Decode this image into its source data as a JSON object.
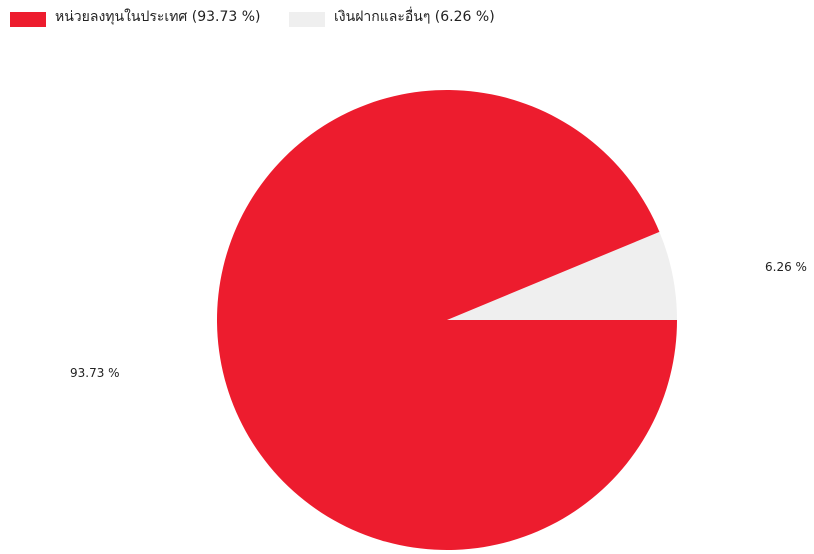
{
  "chart_data": {
    "type": "pie",
    "legend_position": "top-left",
    "series": [
      {
        "name": "หน่วยลงทุนในประเทศ (93.73 %)",
        "value": 93.73,
        "data_label": "93.73 %",
        "color": "#ed1c2e"
      },
      {
        "name": "เงินฝากและอื่นๆ (6.26 %)",
        "value": 6.26,
        "data_label": "6.26 %",
        "color": "#efefef"
      }
    ]
  }
}
